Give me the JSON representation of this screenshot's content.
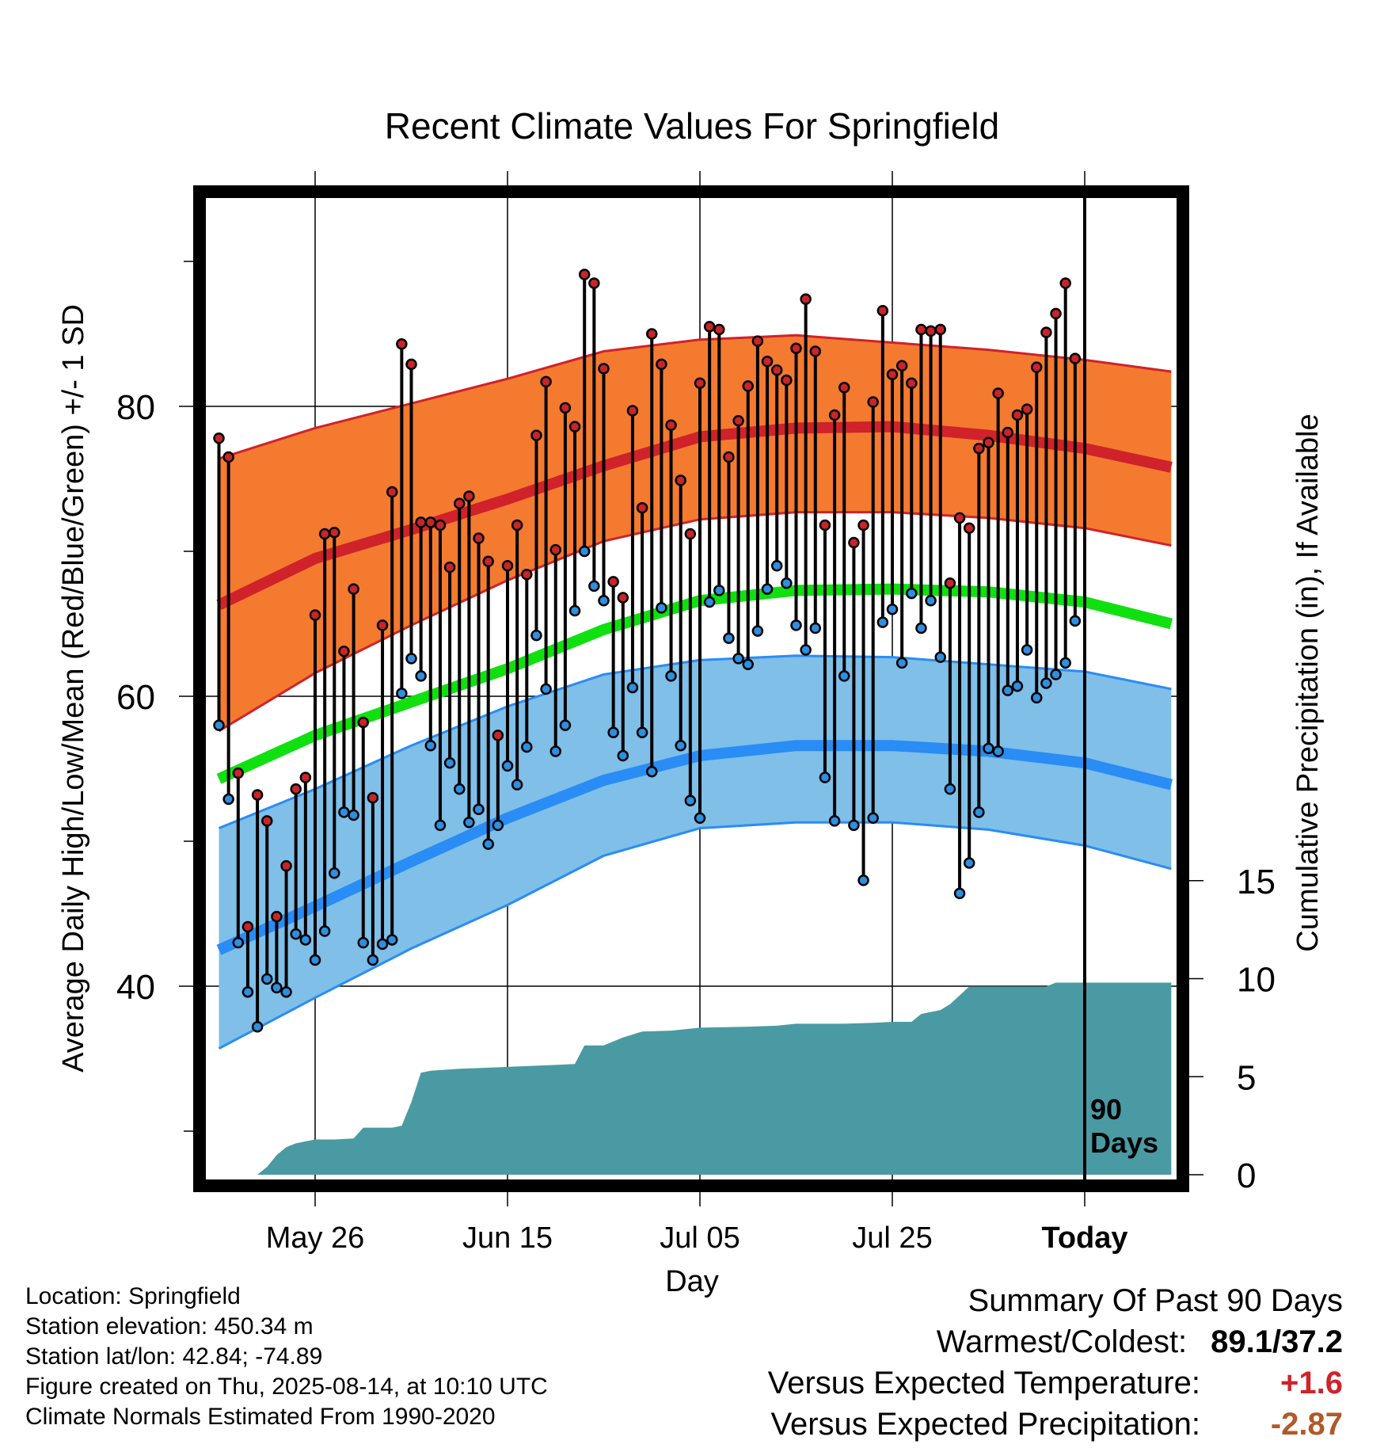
{
  "chart_data": {
    "type": "line",
    "title": "Recent Climate Values For Springfield",
    "xlabel": "Day",
    "ylabel": "Average Daily High/Low/Mean (Red/Blue/Green) +/- 1 SD",
    "y2label": "Cumulative Precipitation (in), If Available",
    "ylim": [
      28,
      94
    ],
    "y2lim": [
      0,
      60
    ],
    "xlim_days": [
      -100,
      10
    ],
    "x_tick_days": [
      -80,
      -60,
      -40,
      -20,
      0
    ],
    "x_tick_labels": [
      "May 26",
      "Jun 15",
      "Jul 05",
      "Jul 25",
      "Today"
    ],
    "y_tick_labels": [
      "40",
      "60",
      "80"
    ],
    "y_tick_values": [
      40,
      60,
      80
    ],
    "y_minor_ticks": [
      30,
      50,
      70,
      90
    ],
    "y2_tick_labels": [
      "0",
      "5",
      "10",
      "15"
    ],
    "y2_tick_values": [
      0,
      5,
      10,
      15
    ],
    "grid": true,
    "period_label": [
      "90",
      "Days"
    ],
    "normals": {
      "days": [
        -90,
        -80,
        -70,
        -60,
        -50,
        -40,
        -30,
        -20,
        -10,
        0,
        9
      ],
      "high_mean": [
        66.3,
        69.5,
        71.5,
        73.6,
        75.9,
        77.9,
        78.5,
        78.6,
        78.0,
        77.1,
        75.8
      ],
      "high_sd_upper": [
        76.4,
        78.5,
        80.2,
        81.9,
        83.8,
        84.6,
        84.9,
        84.4,
        83.9,
        83.2,
        82.4
      ],
      "high_sd_lower": [
        57.6,
        61.6,
        64.9,
        68.0,
        70.7,
        72.2,
        72.7,
        72.7,
        72.3,
        71.6,
        70.4
      ],
      "mean": [
        54.3,
        57.3,
        59.6,
        61.9,
        64.6,
        66.6,
        67.3,
        67.4,
        67.2,
        66.5,
        65.0
      ],
      "low_mean": [
        42.5,
        45.5,
        48.6,
        51.6,
        54.2,
        55.9,
        56.6,
        56.6,
        56.2,
        55.4,
        53.9
      ],
      "low_sd_upper": [
        50.9,
        53.6,
        56.6,
        59.3,
        61.5,
        62.5,
        62.8,
        62.7,
        62.2,
        61.7,
        60.5
      ],
      "low_sd_lower": [
        35.7,
        39.2,
        42.6,
        45.6,
        49.0,
        50.9,
        51.3,
        51.3,
        50.8,
        49.7,
        48.1
      ]
    },
    "daily": {
      "days": [
        -90,
        -89,
        -88,
        -87,
        -86,
        -85,
        -84,
        -83,
        -82,
        -81,
        -80,
        -79,
        -78,
        -77,
        -76,
        -75,
        -74,
        -73,
        -72,
        -71,
        -70,
        -69,
        -68,
        -67,
        -66,
        -65,
        -64,
        -63,
        -62,
        -61,
        -60,
        -59,
        -58,
        -57,
        -56,
        -55,
        -54,
        -53,
        -52,
        -51,
        -50,
        -49,
        -48,
        -47,
        -46,
        -45,
        -44,
        -43,
        -42,
        -41,
        -40,
        -39,
        -38,
        -37,
        -36,
        -35,
        -34,
        -33,
        -32,
        -31,
        -30,
        -29,
        -28,
        -27,
        -26,
        -25,
        -24,
        -23,
        -22,
        -21,
        -20,
        -19,
        -18,
        -17,
        -16,
        -15,
        -14,
        -13,
        -12,
        -11,
        -10,
        -9,
        -8,
        -7,
        -6,
        -5,
        -4,
        -3,
        -2,
        -1
      ],
      "high": [
        77.8,
        76.5,
        54.7,
        44.1,
        53.2,
        51.4,
        44.8,
        48.3,
        53.6,
        54.4,
        65.6,
        71.2,
        71.3,
        63.1,
        67.4,
        58.2,
        53.0,
        64.9,
        74.1,
        84.3,
        82.9,
        72.0,
        72.0,
        71.8,
        68.9,
        73.3,
        73.8,
        70.9,
        69.3,
        57.3,
        69.0,
        71.8,
        68.4,
        78.0,
        81.7,
        70.1,
        79.9,
        78.6,
        89.1,
        88.5,
        82.6,
        67.9,
        66.8,
        79.7,
        73.0,
        85.0,
        82.9,
        78.7,
        74.9,
        71.2,
        81.6,
        85.5,
        85.3,
        76.5,
        79.0,
        81.4,
        84.5,
        83.1,
        82.5,
        81.8,
        84.0,
        87.4,
        83.8,
        71.8,
        79.4,
        81.3,
        70.6,
        71.8,
        80.3,
        86.6,
        82.2,
        82.8,
        81.6,
        85.3,
        85.2,
        85.3,
        67.8,
        72.3,
        71.6,
        77.1,
        77.5,
        80.9,
        78.2,
        79.4,
        79.8,
        82.7,
        85.1,
        86.4,
        88.5,
        83.3
      ],
      "low": [
        58.0,
        52.9,
        43.0,
        39.6,
        37.2,
        40.5,
        39.9,
        39.6,
        43.6,
        43.2,
        41.8,
        43.8,
        47.8,
        52.0,
        51.8,
        43.0,
        41.8,
        42.9,
        43.2,
        60.2,
        62.6,
        61.4,
        56.6,
        51.1,
        55.4,
        53.6,
        51.3,
        52.2,
        49.8,
        51.1,
        55.2,
        53.9,
        56.5,
        64.2,
        60.5,
        56.2,
        58.0,
        65.9,
        70.0,
        67.6,
        66.6,
        57.5,
        55.9,
        60.6,
        57.5,
        54.8,
        66.1,
        61.4,
        56.6,
        52.8,
        51.6,
        66.5,
        67.3,
        64.0,
        62.6,
        62.2,
        64.5,
        67.4,
        69.0,
        67.8,
        64.9,
        63.2,
        64.7,
        54.4,
        51.4,
        61.4,
        51.1,
        47.3,
        51.6,
        65.1,
        66.0,
        62.3,
        67.1,
        64.7,
        66.6,
        62.7,
        53.6,
        46.4,
        48.5,
        52.0,
        56.4,
        56.2,
        60.4,
        60.7,
        63.2,
        59.9,
        60.9,
        61.5,
        62.3,
        65.2
      ]
    },
    "precip": {
      "days": [
        -90,
        -86,
        -85,
        -84,
        -83,
        -82,
        -80,
        -78,
        -76,
        -75,
        -72,
        -71,
        -70,
        -69,
        -68,
        -65,
        -60,
        -55,
        -53,
        -52,
        -50,
        -48,
        -46,
        -43,
        -40,
        -35,
        -32,
        -30,
        -25,
        -22,
        -20,
        -18,
        -17,
        -15,
        -14,
        -12,
        -10,
        -4,
        -3,
        0,
        9
      ],
      "values": [
        0.0,
        0.0,
        0.4,
        1.0,
        1.4,
        1.6,
        1.8,
        1.8,
        1.85,
        2.4,
        2.4,
        2.5,
        3.7,
        5.2,
        5.3,
        5.4,
        5.5,
        5.6,
        5.65,
        6.6,
        6.6,
        7.0,
        7.3,
        7.35,
        7.5,
        7.55,
        7.6,
        7.7,
        7.7,
        7.75,
        7.8,
        7.8,
        8.2,
        8.4,
        8.7,
        9.6,
        9.6,
        9.6,
        9.8,
        9.8,
        9.8
      ]
    },
    "colors": {
      "high_band": "#f47a30",
      "high_line": "#d0222a",
      "mean_line": "#10e010",
      "low_band": "#7fbfe8",
      "low_line": "#2a8cf5",
      "precip": "#4a9aa3",
      "high_dot": "#c8252a",
      "low_dot": "#2e8fe0"
    }
  },
  "info": {
    "location": "Location: Springfield",
    "elevation": "Station elevation: 450.34 m",
    "latlon": "Station lat/lon: 42.84; -74.89",
    "created": "Figure created on Thu, 2025-08-14, at 10:10 UTC",
    "normals": "Climate Normals Estimated From 1990-2020"
  },
  "summary": {
    "heading": "Summary Of Past 90 Days",
    "warm_cold_label": "Warmest/Coldest:",
    "warm_cold_value": "89.1/37.2",
    "temp_label": "Versus Expected Temperature:",
    "temp_value": "+1.6",
    "temp_color": "#d0222a",
    "precip_label": "Versus Expected Precipitation:",
    "precip_value": "-2.87",
    "precip_color": "#b05a2a"
  }
}
